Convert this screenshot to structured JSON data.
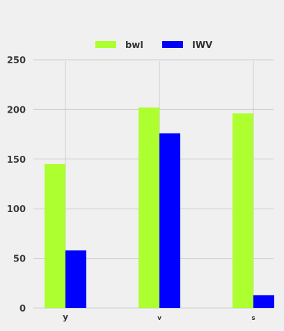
{
  "chart_data": {
    "type": "bar",
    "categories": [
      "y",
      "v",
      "s"
    ],
    "series": [
      {
        "name": "bwl",
        "color": "#adff2f",
        "values": [
          145,
          202,
          196
        ]
      },
      {
        "name": "IWV",
        "color": "#0000ff",
        "values": [
          58,
          176,
          13
        ]
      }
    ],
    "ylim": [
      0,
      250
    ],
    "yticks": [
      0,
      50,
      100,
      150,
      200,
      250
    ],
    "grid": true,
    "legend_position": "top-center",
    "background": "#f0f0f0",
    "grid_color": "#cbcbcb"
  }
}
